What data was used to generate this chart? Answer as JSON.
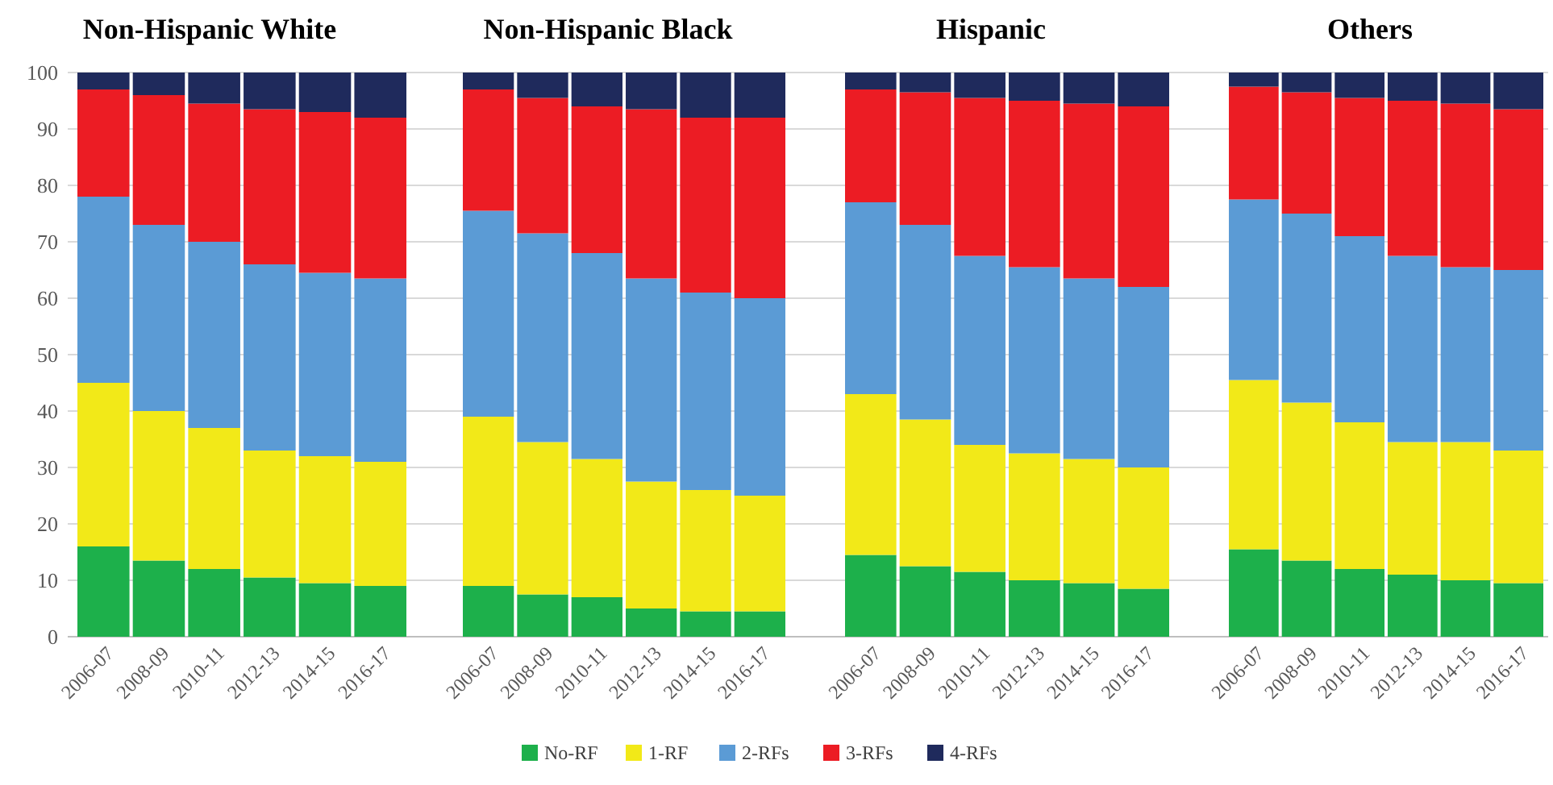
{
  "chart_data": [
    {
      "type": "bar",
      "title": "Non-Hispanic White",
      "stacked": true,
      "categories": [
        "2006-07",
        "2008-09",
        "2010-11",
        "2012-13",
        "2014-15",
        "2016-17"
      ],
      "ylim": [
        0,
        100
      ],
      "yticks": [
        0,
        10,
        20,
        30,
        40,
        50,
        60,
        70,
        80,
        90,
        100
      ],
      "grid": "y",
      "legend": "bottom",
      "series": [
        {
          "name": "No-RF",
          "color": "#1db04b",
          "values": [
            16,
            13.5,
            12,
            10.5,
            9.5,
            9
          ]
        },
        {
          "name": "1-RF",
          "color": "#f2e918",
          "values": [
            29,
            26.5,
            25,
            22.5,
            22.5,
            22
          ]
        },
        {
          "name": "2-RFs",
          "color": "#5b9bd5",
          "values": [
            33,
            33,
            33,
            33,
            32.5,
            32.5
          ]
        },
        {
          "name": "3-RFs",
          "color": "#ec1c24",
          "values": [
            19,
            23,
            24.5,
            27.5,
            28.5,
            28.5
          ]
        },
        {
          "name": "4-RFs",
          "color": "#1f2a5c",
          "values": [
            3,
            4,
            5.5,
            6.5,
            7,
            8
          ]
        }
      ]
    },
    {
      "type": "bar",
      "title": "Non-Hispanic Black",
      "stacked": true,
      "categories": [
        "2006-07",
        "2008-09",
        "2010-11",
        "2012-13",
        "2014-15",
        "2016-17"
      ],
      "ylim": [
        0,
        100
      ],
      "yticks": [
        0,
        10,
        20,
        30,
        40,
        50,
        60,
        70,
        80,
        90,
        100
      ],
      "grid": "y",
      "tick_labels": "x",
      "series": [
        {
          "color": "#1db04b",
          "values": [
            9,
            7.5,
            7,
            5,
            4.5,
            4.5
          ]
        },
        {
          "color": "#f2e918",
          "values": [
            30,
            27,
            24.5,
            22.5,
            21.5,
            20.5
          ]
        },
        {
          "color": "#5b9bd5",
          "values": [
            36.5,
            37,
            36.5,
            36,
            35,
            35
          ]
        },
        {
          "color": "#ec1c24",
          "values": [
            21.5,
            24,
            26,
            30,
            31,
            32
          ]
        },
        {
          "color": "#1f2a5c",
          "values": [
            3,
            4.5,
            6,
            6.5,
            8,
            8
          ]
        }
      ]
    },
    {
      "type": "bar",
      "title": "Hispanic",
      "stacked": true,
      "categories": [
        "2006-07",
        "2008-09",
        "2010-11",
        "2012-13",
        "2014-15",
        "2016-17"
      ],
      "ylim": [
        0,
        100
      ],
      "yticks": [
        0,
        10,
        20,
        30,
        40,
        50,
        60,
        70,
        80,
        90,
        100
      ],
      "grid": "y",
      "tick_labels": "x",
      "series": [
        {
          "color": "#1db04b",
          "values": [
            14.5,
            12.5,
            11.5,
            10,
            9.5,
            8.5
          ]
        },
        {
          "color": "#f2e918",
          "values": [
            28.5,
            26,
            22.5,
            22.5,
            22,
            21.5
          ]
        },
        {
          "color": "#5b9bd5",
          "values": [
            34,
            34.5,
            33.5,
            33,
            32,
            32
          ]
        },
        {
          "color": "#ec1c24",
          "values": [
            20,
            23.5,
            28,
            29.5,
            31,
            32
          ]
        },
        {
          "color": "#1f2a5c",
          "values": [
            3,
            3.5,
            4.5,
            5,
            5.5,
            6
          ]
        }
      ]
    },
    {
      "type": "bar",
      "title": "Others",
      "stacked": true,
      "categories": [
        "2006-07",
        "2008-09",
        "2010-11",
        "2012-13",
        "2014-15",
        "2016-17"
      ],
      "ylim": [
        0,
        100
      ],
      "yticks": [
        0,
        10,
        20,
        30,
        40,
        50,
        60,
        70,
        80,
        90,
        100
      ],
      "grid": "y",
      "tick_labels": "x",
      "series": [
        {
          "color": "#1db04b",
          "values": [
            15.5,
            13.5,
            12,
            11,
            10,
            9.5
          ]
        },
        {
          "color": "#f2e918",
          "values": [
            30,
            28,
            26,
            23.5,
            24.5,
            23.5
          ]
        },
        {
          "color": "#5b9bd5",
          "values": [
            32,
            33.5,
            33,
            33,
            31,
            32
          ]
        },
        {
          "color": "#ec1c24",
          "values": [
            20,
            21.5,
            24.5,
            27.5,
            29,
            28.5
          ]
        },
        {
          "color": "#1f2a5c",
          "values": [
            2.5,
            3.5,
            4.5,
            5,
            5.5,
            6.5
          ]
        }
      ]
    }
  ]
}
